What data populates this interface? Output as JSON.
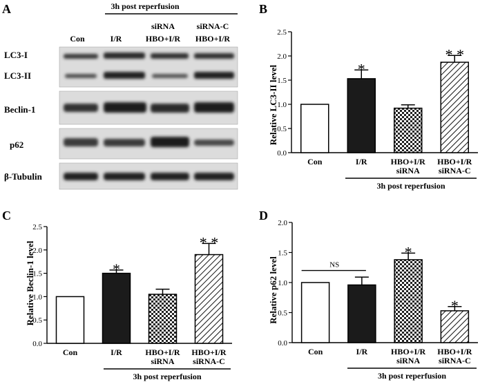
{
  "panels": {
    "A": "A",
    "B": "B",
    "C": "C",
    "D": "D"
  },
  "blot": {
    "group_label": "3h post reperfusion",
    "lanes": [
      {
        "line1": "",
        "line2": "Con"
      },
      {
        "line1": "",
        "line2": "I/R"
      },
      {
        "line1": "siRNA",
        "line2": "HBO+I/R"
      },
      {
        "line1": "siRNA-C",
        "line2": "HBO+I/R"
      }
    ],
    "rows": [
      "LC3-I",
      "LC3-II",
      "Beclin-1",
      "p62",
      "β-Tubulin"
    ]
  },
  "chart_data": [
    {
      "type": "bar",
      "panel": "B",
      "ylabel": "Relative LC3-II level",
      "group_label": "3h post reperfusion",
      "ylim": [
        0,
        2.5
      ],
      "yticks": [
        "0.0",
        "0.5",
        "1.0",
        "1.5",
        "2.0",
        "2.5"
      ],
      "categories": [
        [
          "Con"
        ],
        [
          "I/R"
        ],
        [
          "HBO+I/R",
          "siRNA"
        ],
        [
          "HBO+I/R",
          "siRNA-C"
        ]
      ],
      "values": [
        1.0,
        1.53,
        0.92,
        1.87
      ],
      "errors": [
        0,
        0.18,
        0.07,
        0.14
      ],
      "annotations": [
        "",
        "*",
        "",
        "**"
      ],
      "fills": [
        "white",
        "black",
        "checker",
        "hatch"
      ]
    },
    {
      "type": "bar",
      "panel": "C",
      "ylabel": "Relative Beclin-1 level",
      "group_label": "3h post reperfusion",
      "ylim": [
        0,
        2.5
      ],
      "yticks": [
        "0.0",
        "0.5",
        "1.0",
        "1.5",
        "2.0",
        "2.5"
      ],
      "categories": [
        [
          "Con"
        ],
        [
          "I/R"
        ],
        [
          "HBO+I/R",
          "siRNA"
        ],
        [
          "HBO+I/R",
          "siRNA-C"
        ]
      ],
      "values": [
        1.0,
        1.5,
        1.05,
        1.9
      ],
      "errors": [
        0,
        0.07,
        0.11,
        0.24
      ],
      "annotations": [
        "",
        "*",
        "",
        "**"
      ],
      "fills": [
        "white",
        "black",
        "checker",
        "hatch"
      ]
    },
    {
      "type": "bar",
      "panel": "D",
      "ylabel": "Relative p62 level",
      "group_label": "3h post reperfusion",
      "ylim": [
        0,
        2.0
      ],
      "yticks": [
        "0.0",
        "0.5",
        "1.0",
        "1.5",
        "2.0"
      ],
      "categories": [
        [
          "Con"
        ],
        [
          "I/R"
        ],
        [
          "HBO+I/R",
          "siRNA"
        ],
        [
          "HBO+I/R",
          "siRNA-C"
        ]
      ],
      "values": [
        1.0,
        0.96,
        1.38,
        0.53
      ],
      "errors": [
        0,
        0.13,
        0.11,
        0.07
      ],
      "annotations": [
        "",
        "",
        "*",
        "*"
      ],
      "ns_label": "NS",
      "fills": [
        "white",
        "black",
        "checker",
        "hatch"
      ]
    }
  ]
}
